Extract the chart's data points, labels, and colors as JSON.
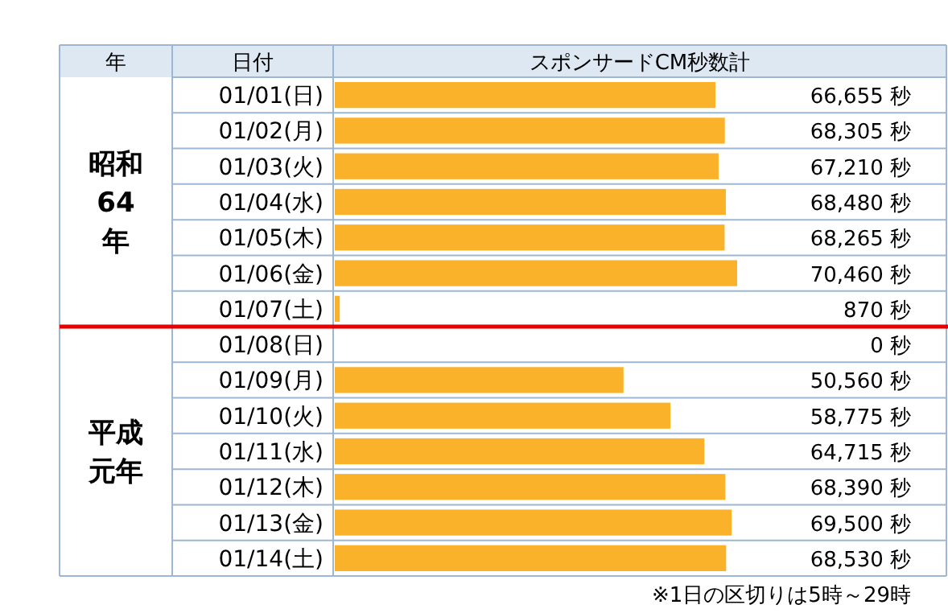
{
  "chart_data": {
    "type": "bar",
    "orientation": "horizontal",
    "xlabel": "スポンサードCM秒数計",
    "ylabel": "日付",
    "categories": [
      "01/01(日)",
      "01/02(月)",
      "01/03(火)",
      "01/04(水)",
      "01/05(木)",
      "01/06(金)",
      "01/07(土)",
      "01/08(日)",
      "01/09(月)",
      "01/10(火)",
      "01/11(水)",
      "01/12(木)",
      "01/13(金)",
      "01/14(土)"
    ],
    "values": [
      66655,
      68305,
      67210,
      68480,
      68265,
      70460,
      870,
      0,
      50560,
      58775,
      64715,
      68390,
      69500,
      68530
    ],
    "value_labels": [
      "66,655 秒",
      "68,305 秒",
      "67,210 秒",
      "68,480 秒",
      "68,265 秒",
      "70,460 秒",
      "870 秒",
      "0 秒",
      "50,560 秒",
      "58,775 秒",
      "64,715 秒",
      "68,390 秒",
      "69,500 秒",
      "68,530 秒"
    ],
    "color": "#fbb22b",
    "ref_lines": [
      {
        "axis": "y",
        "value": "01/08(日)",
        "color": "#e60000"
      }
    ],
    "annotations": [
      "年",
      "昭和64年",
      "平成元年",
      "※1日の区切りは5時～29時"
    ]
  }
}
